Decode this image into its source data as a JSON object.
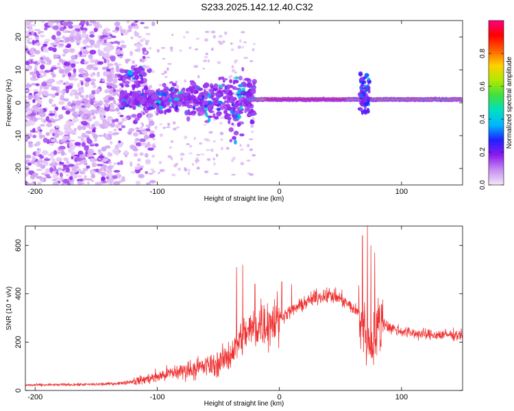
{
  "title": "S233.2025.142.12.40.C32",
  "colors": {
    "snr_line": "#ef3030",
    "axis": "#000000"
  },
  "chart_data": [
    {
      "type": "heatmap",
      "name": "spectrogram",
      "xlabel": "Height of straight line (km)",
      "ylabel": "Frequency (Hz)",
      "xlim": [
        -208,
        150
      ],
      "ylim": [
        -25,
        25
      ],
      "x_ticks": [
        -200,
        -100,
        0,
        100
      ],
      "x_tick_labels": [
        "-200",
        "-100",
        "0",
        "100"
      ],
      "y_ticks": [
        -20,
        -10,
        0,
        10,
        20
      ],
      "y_tick_labels": [
        "-20",
        "-10",
        "0",
        "10",
        "20"
      ],
      "colorbar": {
        "label": "Normalized spectral amplitude",
        "range": [
          0,
          1
        ],
        "ticks": [
          0.0,
          0.2,
          0.4,
          0.6,
          0.8
        ],
        "tick_labels": [
          "0.0",
          "0.2",
          "0.4",
          "0.6",
          "0.8"
        ],
        "colormap": [
          "#f4e6fb",
          "#c68ff0",
          "#8c1af0",
          "#2020ff",
          "#00b6ff",
          "#00e0c0",
          "#40e040",
          "#b0e800",
          "#ffd000",
          "#ff6000",
          "#ff0000",
          "#ff0080"
        ]
      },
      "features": {
        "carrier_frequency_hz": 1,
        "noise_region_x": [
          -208,
          -115
        ],
        "noise_level": 0.08,
        "scatter_region_x": [
          -130,
          -20
        ],
        "carrier_start_x": -25,
        "carrier_peak_x": [
          -10,
          55
        ],
        "disturbance_x": 70
      }
    },
    {
      "type": "line",
      "name": "snr",
      "xlabel": "Height of straight line (km)",
      "ylabel": "SNR (10 * v/v)",
      "xlim": [
        -208,
        150
      ],
      "ylim": [
        0,
        680
      ],
      "x_ticks": [
        -200,
        -100,
        0,
        100
      ],
      "x_tick_labels": [
        "-200",
        "-100",
        "0",
        "100"
      ],
      "y_ticks": [
        0,
        200,
        400,
        600
      ],
      "y_tick_labels": [
        "0",
        "200",
        "400",
        "600"
      ],
      "envelope": [
        [
          -208,
          22
        ],
        [
          -150,
          25
        ],
        [
          -130,
          30
        ],
        [
          -110,
          45
        ],
        [
          -90,
          70
        ],
        [
          -70,
          90
        ],
        [
          -50,
          110
        ],
        [
          -40,
          150
        ],
        [
          -30,
          230
        ],
        [
          -20,
          260
        ],
        [
          -10,
          280
        ],
        [
          0,
          300
        ],
        [
          10,
          330
        ],
        [
          20,
          360
        ],
        [
          30,
          385
        ],
        [
          40,
          395
        ],
        [
          50,
          380
        ],
        [
          60,
          340
        ],
        [
          65,
          320
        ],
        [
          70,
          250
        ],
        [
          75,
          180
        ],
        [
          80,
          260
        ],
        [
          85,
          285
        ],
        [
          90,
          260
        ],
        [
          100,
          245
        ],
        [
          120,
          230
        ],
        [
          150,
          230
        ]
      ],
      "spikes": [
        [
          -35,
          510
        ],
        [
          -30,
          520
        ],
        [
          -20,
          440
        ],
        [
          -15,
          380
        ],
        [
          2,
          450
        ],
        [
          10,
          440
        ],
        [
          68,
          640
        ],
        [
          72,
          680
        ],
        [
          75,
          600
        ],
        [
          78,
          570
        ],
        [
          80,
          330
        ]
      ]
    }
  ]
}
